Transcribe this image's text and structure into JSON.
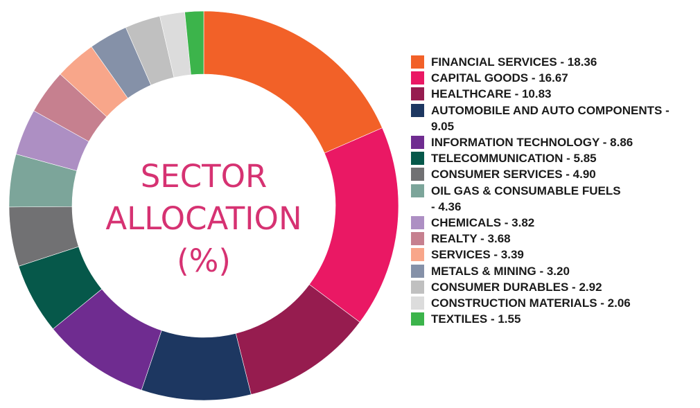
{
  "title_lines": [
    "SECTOR",
    "ALLOCATION",
    "(%)"
  ],
  "chart_data": {
    "type": "pie",
    "variant": "donut",
    "title": "SECTOR ALLOCATION (%)",
    "legend_position": "right",
    "categories": [
      "FINANCIAL SERVICES",
      "CAPITAL GOODS",
      "HEALTHCARE",
      "AUTOMOBILE AND AUTO COMPONENTS",
      "INFORMATION TECHNOLOGY",
      "TELECOMMUNICATION",
      "CONSUMER SERVICES",
      "OIL GAS & CONSUMABLE FUELS",
      "CHEMICALS",
      "REALTY",
      "SERVICES",
      "METALS & MINING",
      "CONSUMER DURABLES",
      "CONSTRUCTION MATERIALS",
      "TEXTILES"
    ],
    "values": [
      18.36,
      16.67,
      10.83,
      9.05,
      8.86,
      5.85,
      4.9,
      4.36,
      3.82,
      3.68,
      3.39,
      3.2,
      2.92,
      2.06,
      1.55
    ],
    "legend_labels": [
      "FINANCIAL SERVICES - 18.36",
      "CAPITAL GOODS - 16.67",
      "HEALTHCARE - 10.83",
      "AUTOMOBILE AND AUTO COMPONENTS - 9.05",
      "INFORMATION TECHNOLOGY - 8.86",
      "TELECOMMUNICATION - 5.85",
      "CONSUMER SERVICES - 4.90",
      "OIL GAS & CONSUMABLE FUELS - 4.36",
      "CHEMICALS - 3.82",
      "REALTY - 3.68",
      "SERVICES - 3.39",
      "METALS & MINING - 3.20",
      "CONSUMER DURABLES - 2.92",
      "CONSTRUCTION MATERIALS - 2.06",
      "TEXTILES - 1.55"
    ],
    "colors": [
      "#f26128",
      "#ea1864",
      "#961c4f",
      "#1d3761",
      "#6f2c90",
      "#06584a",
      "#717173",
      "#7ca59a",
      "#ad8fc3",
      "#c6808f",
      "#f8a68a",
      "#8591a8",
      "#c0c0c0",
      "#dcdcdc",
      "#3cb44b"
    ]
  }
}
